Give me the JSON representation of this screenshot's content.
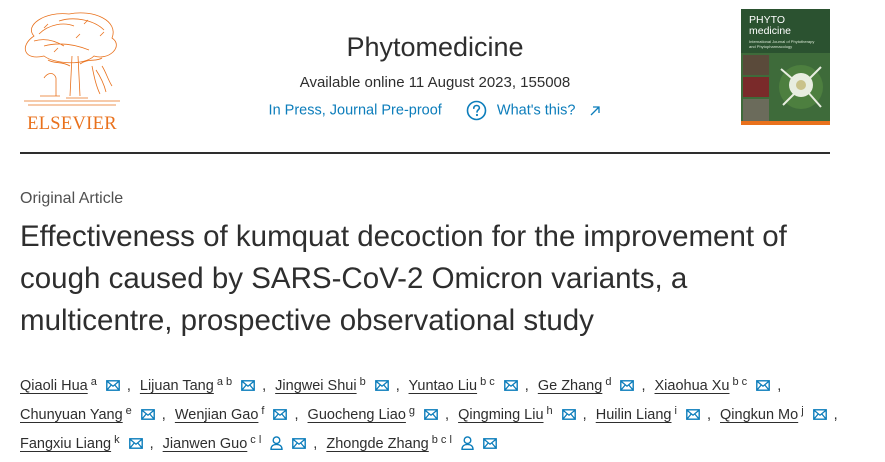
{
  "header": {
    "publisher_logo_text": "ELSEVIER",
    "journal_title": "Phytomedicine",
    "availability": "Available online 11 August 2023, 155008",
    "status_link": "In Press, Journal Pre-proof",
    "whats_this_link": "What's this?",
    "cover_title_line1": "PHYTO",
    "cover_title_line2": "medicine",
    "cover_subtitle": "International Journal of Phytotherapy and Phytopharmacology"
  },
  "article": {
    "type": "Original Article",
    "title": "Effectiveness of kumquat decoction for the improvement of cough caused by SARS-CoV-2 Omicron variants, a multicentre, prospective observational study"
  },
  "authors": [
    {
      "name": "Qiaoli Hua",
      "aff": "a",
      "mail": true,
      "person": false
    },
    {
      "name": "Lijuan Tang",
      "aff": "a b",
      "mail": true,
      "person": false
    },
    {
      "name": "Jingwei Shui",
      "aff": "b",
      "mail": true,
      "person": false
    },
    {
      "name": "Yuntao Liu",
      "aff": "b c",
      "mail": true,
      "person": false
    },
    {
      "name": "Ge Zhang",
      "aff": "d",
      "mail": true,
      "person": false
    },
    {
      "name": "Xiaohua Xu",
      "aff": "b c",
      "mail": true,
      "person": false
    },
    {
      "name": "Chunyuan Yang",
      "aff": "e",
      "mail": true,
      "person": false
    },
    {
      "name": "Wenjian Gao",
      "aff": "f",
      "mail": true,
      "person": false
    },
    {
      "name": "Guocheng Liao",
      "aff": "g",
      "mail": true,
      "person": false
    },
    {
      "name": "Qingming Liu",
      "aff": "h",
      "mail": true,
      "person": false
    },
    {
      "name": "Huilin Liang",
      "aff": "i",
      "mail": true,
      "person": false
    },
    {
      "name": "Qingkun Mo",
      "aff": "j",
      "mail": true,
      "person": false
    },
    {
      "name": "Fangxiu Liang",
      "aff": "k",
      "mail": true,
      "person": false
    },
    {
      "name": "Jianwen Guo",
      "aff": "c l",
      "mail": true,
      "person": true
    },
    {
      "name": "Zhongde Zhang",
      "aff": "b c l",
      "mail": true,
      "person": true
    }
  ],
  "separator": ",",
  "colors": {
    "link": "#0c7dbb",
    "publisher_orange": "#e9711c",
    "text": "#2e2e2e"
  },
  "icons": {
    "help": "question-circle-icon",
    "external": "arrow-up-right-icon",
    "mail": "envelope-icon",
    "person": "person-icon"
  }
}
